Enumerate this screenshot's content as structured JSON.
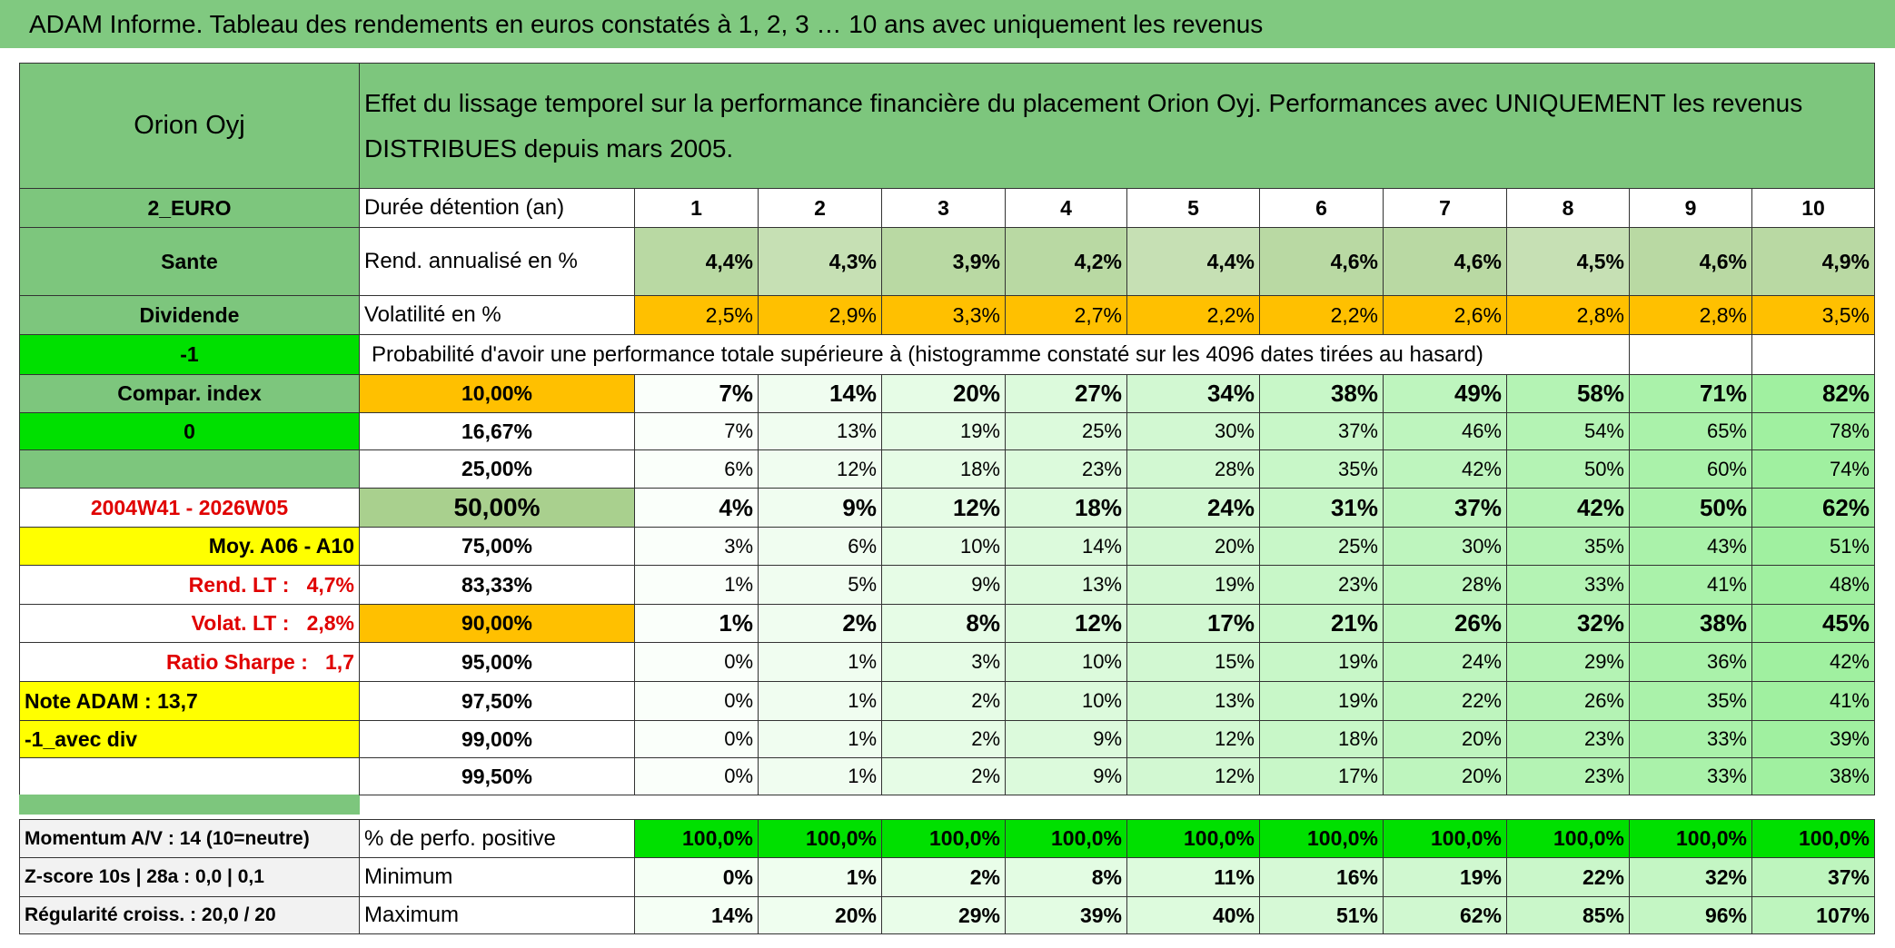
{
  "title": "ADAM Informe. Tableau des rendements en euros constatés à 1, 2, 3 … 10 ans avec uniquement les revenus",
  "header": {
    "asset": "Orion Oyj",
    "description": "Effet du lissage temporel sur la performance financière du placement Orion Oyj. Performances avec UNIQUEMENT les revenus DISTRIBUES depuis mars 2005."
  },
  "left_panel": [
    "2_EURO",
    "Sante",
    "Dividende",
    "-1",
    "Compar. index",
    "0",
    "2004W41 - 2026W05",
    "Moy. A06 - A10",
    "Rend. LT :   4,7%",
    "Volat. LT :   2,8%",
    "Ratio Sharpe :   1,7",
    "Note ADAM : 13,7",
    "-1_avec div",
    "Momentum A/V : 14 (10=neutre)",
    "Z-score 10s | 28a : 0,0 | 0,1",
    "Régularité croiss. : 20,0 / 20"
  ],
  "summary": [
    {
      "label": "Durée détention (an)",
      "values": [
        "1",
        "2",
        "3",
        "4",
        "5",
        "6",
        "7",
        "8",
        "9",
        "10"
      ]
    },
    {
      "label": "Rend. annualisé en %",
      "values": [
        "4,4%",
        "4,3%",
        "3,9%",
        "4,2%",
        "4,4%",
        "4,6%",
        "4,6%",
        "4,5%",
        "4,6%",
        "4,9%"
      ]
    },
    {
      "label": "Volatilité en %",
      "values": [
        "2,5%",
        "2,9%",
        "3,3%",
        "2,7%",
        "2,2%",
        "2,2%",
        "2,6%",
        "2,8%",
        "2,8%",
        "3,5%"
      ]
    }
  ],
  "probability": {
    "title": "Probabilité d'avoir une performance totale supérieure à (histogramme constaté sur les 4096 dates tirées au hasard)",
    "rows": [
      {
        "threshold": "10,00%",
        "values": [
          "7%",
          "14%",
          "20%",
          "27%",
          "34%",
          "38%",
          "49%",
          "58%",
          "71%",
          "82%"
        ]
      },
      {
        "threshold": "16,67%",
        "values": [
          "7%",
          "13%",
          "19%",
          "25%",
          "30%",
          "37%",
          "46%",
          "54%",
          "65%",
          "78%"
        ]
      },
      {
        "threshold": "25,00%",
        "values": [
          "6%",
          "12%",
          "18%",
          "23%",
          "28%",
          "35%",
          "42%",
          "50%",
          "60%",
          "74%"
        ]
      },
      {
        "threshold": "50,00%",
        "values": [
          "4%",
          "9%",
          "12%",
          "18%",
          "24%",
          "31%",
          "37%",
          "42%",
          "50%",
          "62%"
        ]
      },
      {
        "threshold": "75,00%",
        "values": [
          "3%",
          "6%",
          "10%",
          "14%",
          "20%",
          "25%",
          "30%",
          "35%",
          "43%",
          "51%"
        ]
      },
      {
        "threshold": "83,33%",
        "values": [
          "1%",
          "5%",
          "9%",
          "13%",
          "19%",
          "23%",
          "28%",
          "33%",
          "41%",
          "48%"
        ]
      },
      {
        "threshold": "90,00%",
        "values": [
          "1%",
          "2%",
          "8%",
          "12%",
          "17%",
          "21%",
          "26%",
          "32%",
          "38%",
          "45%"
        ]
      },
      {
        "threshold": "95,00%",
        "values": [
          "0%",
          "1%",
          "3%",
          "10%",
          "15%",
          "19%",
          "24%",
          "29%",
          "36%",
          "42%"
        ]
      },
      {
        "threshold": "97,50%",
        "values": [
          "0%",
          "1%",
          "2%",
          "10%",
          "13%",
          "19%",
          "22%",
          "26%",
          "35%",
          "41%"
        ]
      },
      {
        "threshold": "99,00%",
        "values": [
          "0%",
          "1%",
          "2%",
          "9%",
          "12%",
          "18%",
          "20%",
          "23%",
          "33%",
          "39%"
        ]
      },
      {
        "threshold": "99,50%",
        "values": [
          "0%",
          "1%",
          "2%",
          "9%",
          "12%",
          "17%",
          "20%",
          "23%",
          "33%",
          "38%"
        ]
      }
    ]
  },
  "stats": [
    {
      "label": "% de perfo. positive",
      "values": [
        "100,0%",
        "100,0%",
        "100,0%",
        "100,0%",
        "100,0%",
        "100,0%",
        "100,0%",
        "100,0%",
        "100,0%",
        "100,0%"
      ]
    },
    {
      "label": "Minimum",
      "values": [
        "0%",
        "1%",
        "2%",
        "8%",
        "11%",
        "16%",
        "19%",
        "22%",
        "32%",
        "37%"
      ]
    },
    {
      "label": "Maximum",
      "values": [
        "14%",
        "20%",
        "29%",
        "39%",
        "40%",
        "51%",
        "62%",
        "85%",
        "96%",
        "107%"
      ]
    }
  ]
}
